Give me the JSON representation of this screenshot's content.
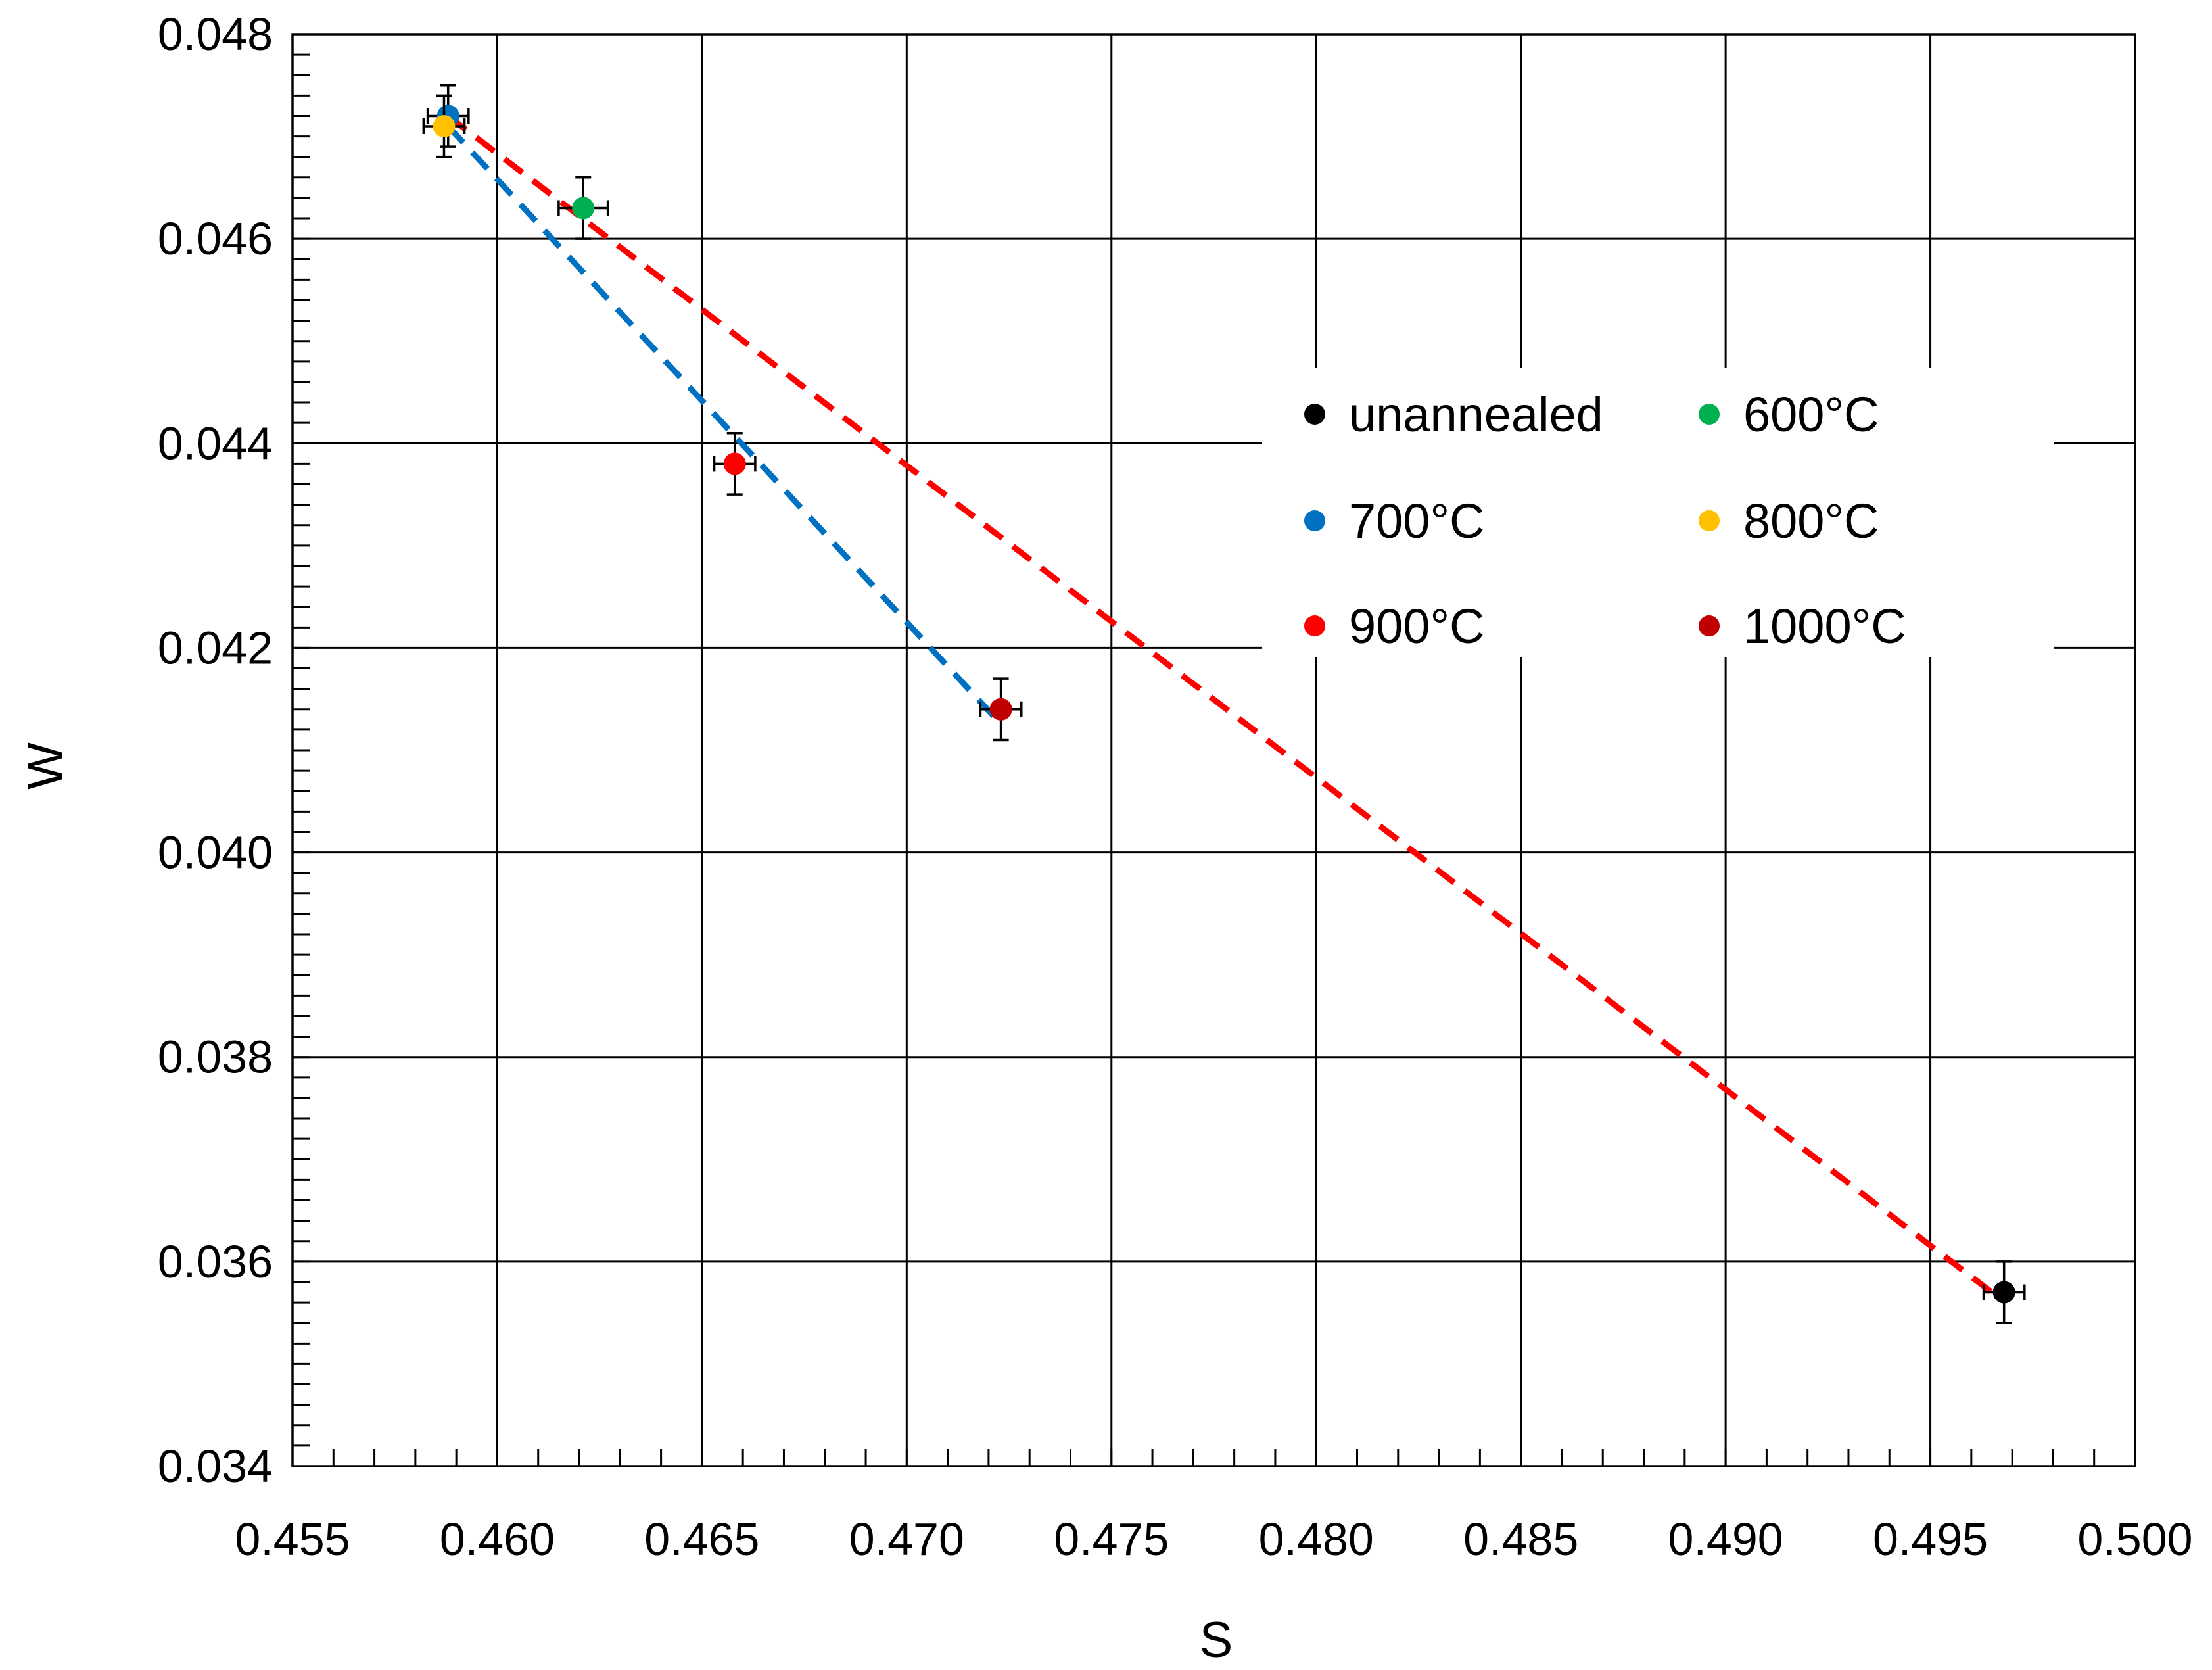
{
  "chart_data": {
    "type": "scatter",
    "title": "",
    "xlabel": "S",
    "ylabel": "W",
    "xlim": [
      0.455,
      0.5
    ],
    "ylim": [
      0.034,
      0.048
    ],
    "grid": true,
    "x_ticks": [
      "0.455",
      "0.460",
      "0.465",
      "0.470",
      "0.475",
      "0.480",
      "0.485",
      "0.490",
      "0.495",
      "0.500"
    ],
    "y_ticks": [
      "0.034",
      "0.036",
      "0.038",
      "0.040",
      "0.042",
      "0.044",
      "0.046",
      "0.048"
    ],
    "series": [
      {
        "name": "unannealed",
        "color": "#000000",
        "points": [
          {
            "x": 0.4968,
            "y": 0.0357,
            "xerr": 0.0005,
            "yerr": 0.0003
          }
        ]
      },
      {
        "name": "600°C",
        "color": "#00b050",
        "points": [
          {
            "x": 0.4621,
            "y": 0.0463,
            "xerr": 0.0006,
            "yerr": 0.0003
          }
        ]
      },
      {
        "name": "700°C",
        "color": "#0070c0",
        "points": [
          {
            "x": 0.4588,
            "y": 0.0472,
            "xerr": 0.0005,
            "yerr": 0.0003
          }
        ]
      },
      {
        "name": "800°C",
        "color": "#ffc000",
        "points": [
          {
            "x": 0.4587,
            "y": 0.0471,
            "xerr": 0.0005,
            "yerr": 0.0003
          }
        ]
      },
      {
        "name": "900°C",
        "color": "#ff0000",
        "points": [
          {
            "x": 0.4658,
            "y": 0.0438,
            "xerr": 0.0005,
            "yerr": 0.0003
          }
        ]
      },
      {
        "name": "1000°C",
        "color": "#c00000",
        "points": [
          {
            "x": 0.4723,
            "y": 0.0414,
            "xerr": 0.0005,
            "yerr": 0.0003
          }
        ]
      }
    ],
    "trend_lines": [
      {
        "name": "blue-dashed-trend",
        "color": "#0070c0",
        "from": [
          0.4588,
          0.0471
        ],
        "to": [
          0.4722,
          0.0413
        ]
      },
      {
        "name": "red-dashed-trend",
        "color": "#ff0000",
        "from": [
          0.4588,
          0.0472
        ],
        "to": [
          0.4965,
          0.0357
        ]
      }
    ],
    "legend": {
      "placement": "upper-right inside plot",
      "entries": [
        "unannealed",
        "600°C",
        "700°C",
        "800°C",
        "900°C",
        "1000°C"
      ]
    }
  }
}
